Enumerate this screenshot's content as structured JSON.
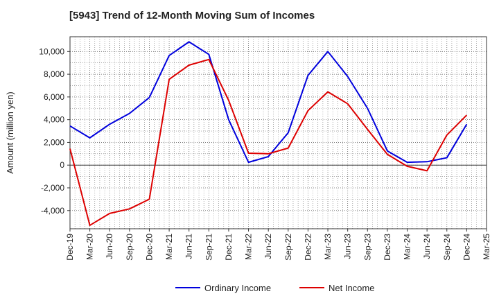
{
  "chart_data": {
    "type": "line",
    "title": "[5943]  Trend of 12-Month Moving Sum of Incomes",
    "xlabel": "",
    "ylabel": "Amount (million yen)",
    "x": [
      "Dec-19",
      "Mar-20",
      "Jun-20",
      "Sep-20",
      "Dec-20",
      "Mar-21",
      "Jun-21",
      "Sep-21",
      "Dec-21",
      "Mar-22",
      "Jun-22",
      "Sep-22",
      "Dec-22",
      "Mar-23",
      "Jun-23",
      "Sep-23",
      "Dec-23",
      "Mar-24",
      "Jun-24",
      "Sep-24",
      "Dec-24",
      "Mar-25"
    ],
    "ylim": [
      -5600,
      11300
    ],
    "yticks": [
      -4000,
      -2000,
      0,
      2000,
      4000,
      6000,
      8000,
      10000
    ],
    "ytick_labels": [
      "-4,000",
      "-2,000",
      "0",
      "2,000",
      "4,000",
      "6,000",
      "8,000",
      "10,000"
    ],
    "grid": true,
    "legend_position": "bottom-center",
    "series": [
      {
        "name": "Ordinary Income",
        "color": "#0000dd",
        "values": [
          3450,
          2400,
          3600,
          4550,
          5950,
          9650,
          10850,
          9750,
          4000,
          250,
          750,
          2850,
          7900,
          10000,
          7800,
          5000,
          1250,
          250,
          300,
          650,
          3600,
          null
        ]
      },
      {
        "name": "Net Income",
        "color": "#dd0000",
        "values": [
          1450,
          -5300,
          -4250,
          -3850,
          -3000,
          7550,
          8800,
          9300,
          5700,
          1050,
          1000,
          1500,
          4800,
          6450,
          5400,
          3150,
          950,
          -100,
          -500,
          2650,
          4400,
          null
        ]
      }
    ]
  }
}
